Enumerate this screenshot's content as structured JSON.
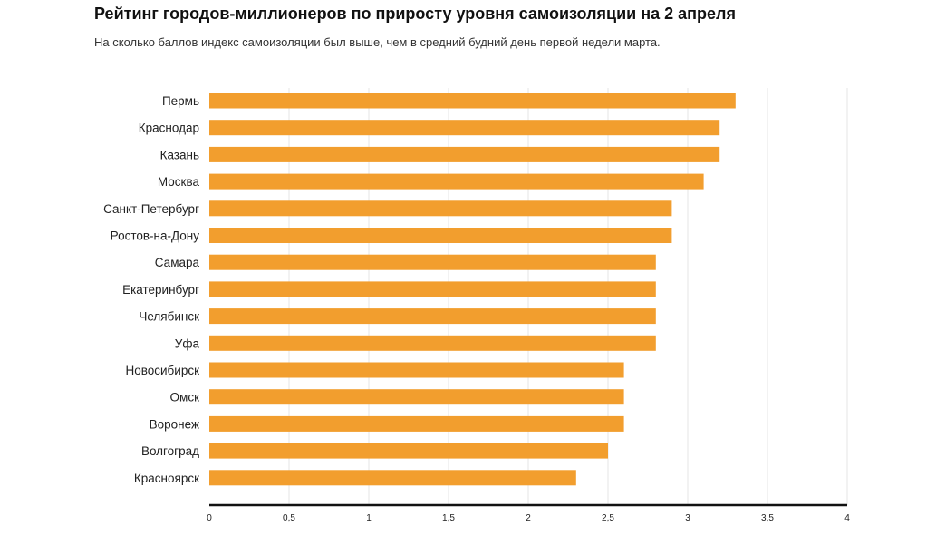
{
  "chart_data": {
    "type": "bar",
    "orientation": "horizontal",
    "title": "Рейтинг городов-миллионеров по приросту уровня самоизоляции на 2 апреля",
    "subtitle": "На сколько баллов индекс самоизоляции был выше, чем в средний будний день первой недели марта.",
    "categories": [
      "Пермь",
      "Краснодар",
      "Казань",
      "Москва",
      "Санкт-Петербург",
      "Ростов-на-Дону",
      "Самара",
      "Екатеринбург",
      "Челябинск",
      "Уфа",
      "Новосибирск",
      "Омск",
      "Воронеж",
      "Волгоград",
      "Красноярск"
    ],
    "values": [
      3.3,
      3.2,
      3.2,
      3.1,
      2.9,
      2.9,
      2.8,
      2.8,
      2.8,
      2.8,
      2.6,
      2.6,
      2.6,
      2.5,
      2.3
    ],
    "xlim": [
      0,
      4
    ],
    "ticks": [
      0,
      0.5,
      1,
      1.5,
      2,
      2.5,
      3,
      3.5,
      4
    ],
    "tick_labels": [
      "0",
      "0,5",
      "1",
      "1,5",
      "2",
      "2,5",
      "3",
      "3,5",
      "4"
    ],
    "bar_color": "#f29e2e",
    "grid": true,
    "xlabel": "",
    "ylabel": ""
  }
}
